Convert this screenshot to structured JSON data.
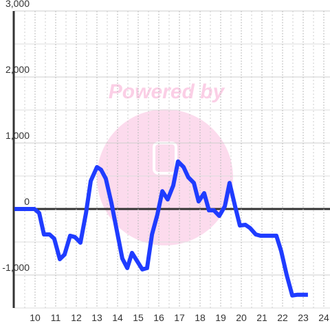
{
  "chart_data": {
    "type": "line",
    "watermark": "Powered by",
    "x": [
      9.0,
      9.97,
      10.2,
      10.43,
      10.7,
      10.93,
      11.2,
      11.43,
      11.7,
      11.93,
      12.2,
      12.47,
      12.7,
      13.0,
      13.2,
      13.43,
      13.7,
      13.97,
      14.23,
      14.47,
      14.7,
      14.93,
      15.2,
      15.43,
      15.67,
      15.93,
      16.17,
      16.43,
      16.7,
      16.93,
      17.2,
      17.43,
      17.7,
      17.93,
      18.2,
      18.43,
      18.67,
      18.93,
      19.2,
      19.43,
      19.7,
      19.93,
      20.2,
      20.43,
      20.7,
      20.93,
      21.2,
      21.43,
      21.7,
      21.93,
      22.2,
      22.47,
      22.7,
      22.97,
      23.23
    ],
    "series": [
      {
        "color": "#1f3cff",
        "values": [
          0,
          0,
          -60,
          -385,
          -385,
          -450,
          -760,
          -690,
          -405,
          -425,
          -510,
          -60,
          425,
          635,
          595,
          460,
          95,
          -335,
          -750,
          -895,
          -665,
          -780,
          -915,
          -895,
          -385,
          -85,
          270,
          145,
          355,
          720,
          635,
          480,
          395,
          115,
          240,
          -20,
          -20,
          -105,
          40,
          395,
          40,
          -250,
          -240,
          -290,
          -385,
          -405,
          -405,
          -405,
          -405,
          -635,
          -1000,
          -1310,
          -1300,
          -1300,
          -1300
        ]
      }
    ],
    "xlim": [
      9,
      24.3
    ],
    "ylim": [
      -1500,
      3000
    ],
    "xticks": [
      10,
      11,
      12,
      13,
      14,
      15,
      16,
      17,
      18,
      19,
      20,
      21,
      22,
      23,
      24
    ],
    "yticks": [
      {
        "value": -1000,
        "label": "-1,000"
      },
      0,
      {
        "value": 1000,
        "label": "1,000"
      },
      {
        "value": 2000,
        "label": "2,000"
      },
      {
        "value": 3000,
        "label": "3,000"
      }
    ],
    "x_minor_ticks": [
      9.5,
      10.5,
      11.5,
      12.5,
      13.5,
      14.5,
      15.5,
      16.5,
      17.5,
      18.5,
      19.5,
      20.5,
      21.5,
      22.5,
      23.5
    ],
    "y_minor_ticks": [
      -1500,
      -500,
      500,
      1500,
      2500
    ],
    "grid": true
  }
}
